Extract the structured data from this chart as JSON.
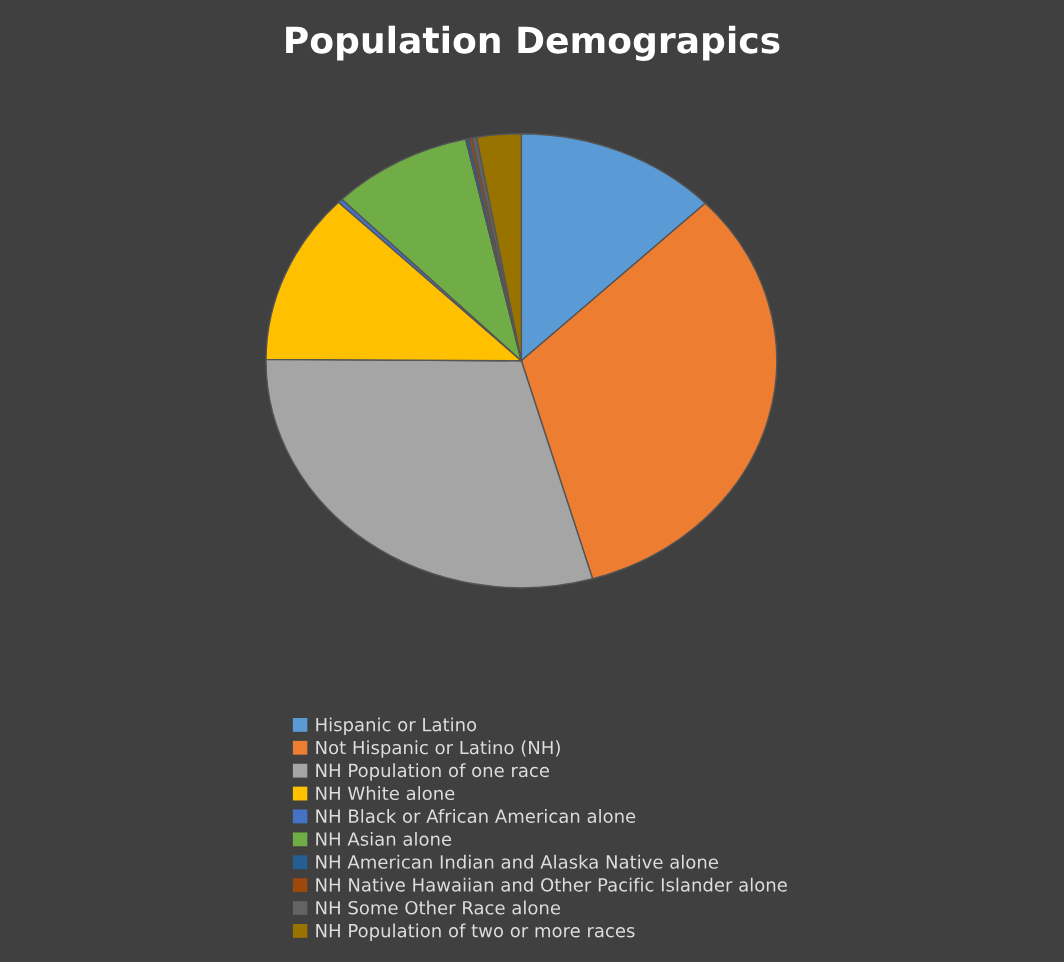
{
  "chart_data": {
    "type": "pie",
    "title": "Population Demograpics",
    "categories": [
      "Hispanic or Latino",
      "Not Hispanic or Latino (NH)",
      "NH Population of one race",
      "NH White alone",
      "NH Black or African American alone",
      "NH Asian alone",
      "NH American Indian and Alaska Native alone",
      "NH Native Hawaiian and Other Pacific Islander alone",
      "NH Some Other Race alone",
      "NH Population of two or more races"
    ],
    "values": [
      12.8,
      32.7,
      29.6,
      12.2,
      0.3,
      8.9,
      0.2,
      0.2,
      0.3,
      2.8
    ],
    "colors": [
      "#5b9bd5",
      "#ed7d31",
      "#a5a5a5",
      "#ffc000",
      "#4472c4",
      "#70ad47",
      "#255e91",
      "#9e480e",
      "#636363",
      "#997300"
    ],
    "legend": "bottom"
  }
}
